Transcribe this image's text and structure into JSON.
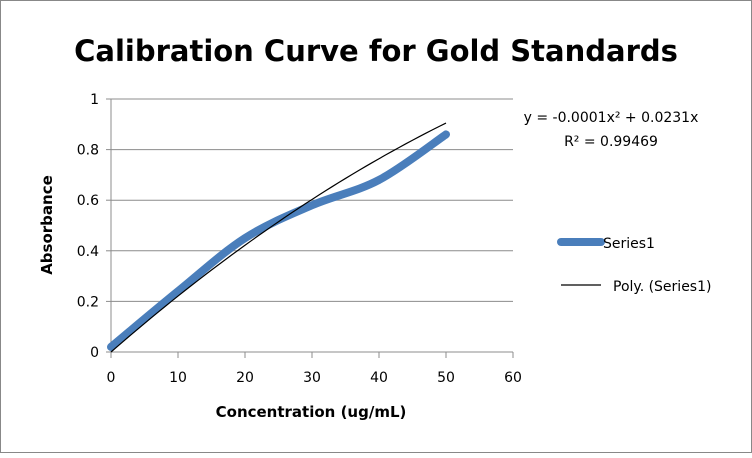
{
  "chart_data": {
    "type": "line",
    "title": "Calibration Curve for Gold Standards",
    "xlabel": "Concentration (ug/mL)",
    "ylabel": "Absorbance",
    "xlim": [
      0,
      60
    ],
    "ylim": [
      0,
      1
    ],
    "xticks": [
      0,
      10,
      20,
      30,
      40,
      50,
      60
    ],
    "yticks": [
      0,
      0.2,
      0.4,
      0.6,
      0.8,
      1
    ],
    "ytick_labels": [
      "0",
      "0.2",
      "0.4",
      "0.6",
      "0.8",
      "1"
    ],
    "grid": "horizontal",
    "legend_position": "right",
    "series": [
      {
        "name": "Series1",
        "x": [
          0,
          10,
          20,
          30,
          40,
          50
        ],
        "y": [
          0.02,
          0.24,
          0.45,
          0.58,
          0.68,
          0.86
        ],
        "color": "#4A7EBB",
        "smooth": true
      },
      {
        "name": "Poly. (Series1)",
        "trendline": "polynomial order 2",
        "coefficients": {
          "a": -0.0001,
          "b": 0.0231,
          "c": 0
        },
        "x_range": [
          0,
          50
        ],
        "color": "#000000"
      }
    ],
    "annotations": {
      "equation": "y = -0.0001x² + 0.0231x",
      "r_squared": "R² = 0.99469"
    }
  }
}
